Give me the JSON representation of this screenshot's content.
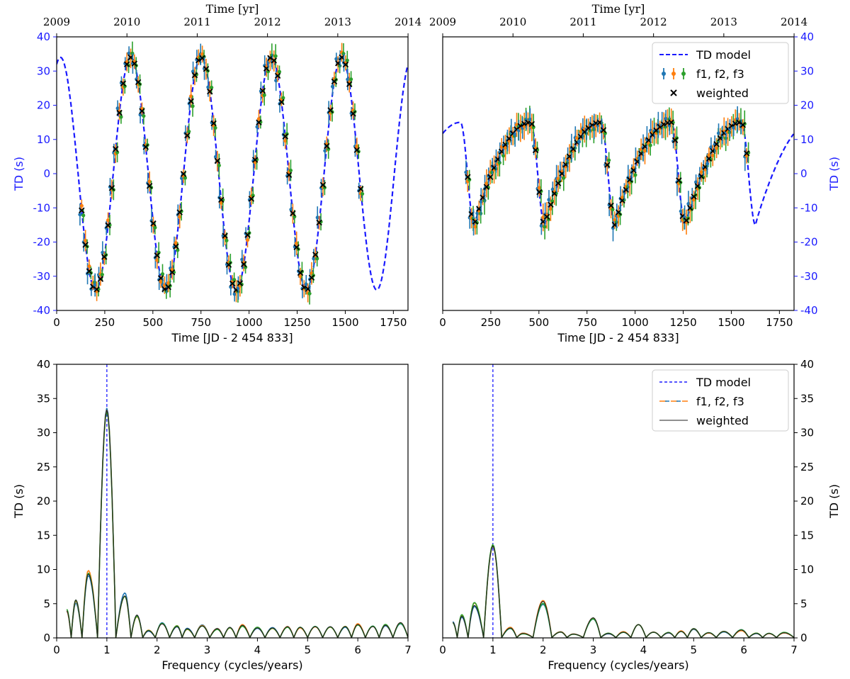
{
  "colors": {
    "model": "#1a1aff",
    "f1": "#1f77b4",
    "f2": "#ff7f0e",
    "f3": "#2ca02c",
    "weighted": "#000000",
    "axis": "#000000"
  },
  "chart_data": [
    {
      "type": "line",
      "panel": "top-left",
      "xlabel": "Time [JD - 2 454 833]",
      "ylabel": "TD (s)",
      "top_xlabel": "Time [yr]",
      "xlim": [
        0,
        1826
      ],
      "ylim": [
        -40,
        40
      ],
      "xticks": [
        "0",
        "250",
        "500",
        "750",
        "1000",
        "1250",
        "1500",
        "1750"
      ],
      "yticks": [
        "-40",
        "-30",
        "-20",
        "-10",
        "0",
        "10",
        "20",
        "30",
        "40"
      ],
      "top_ticks": [
        "2009",
        "2010",
        "2011",
        "2012",
        "2013",
        "2014"
      ],
      "y_axis_side": "left",
      "model": {
        "name": "TD model",
        "amplitude": 34,
        "period": 365.25,
        "phase_peak": 20,
        "shape": "sine"
      },
      "observations": {
        "x_start": 130,
        "x_end": 1580,
        "count": 75,
        "error": 2.5
      },
      "legend": []
    },
    {
      "type": "line",
      "panel": "top-right",
      "xlabel": "Time [JD - 2 454 833]",
      "ylabel": "TD (s)",
      "top_xlabel": "Time [yr]",
      "xlim": [
        0,
        1826
      ],
      "ylim": [
        -40,
        40
      ],
      "xticks": [
        "0",
        "250",
        "500",
        "750",
        "1000",
        "1250",
        "1500",
        "1750"
      ],
      "yticks": [
        "-40",
        "-30",
        "-20",
        "-10",
        "0",
        "10",
        "20",
        "30",
        "40"
      ],
      "top_ticks": [
        "2009",
        "2010",
        "2011",
        "2012",
        "2013",
        "2014"
      ],
      "y_axis_side": "right",
      "model": {
        "name": "TD model",
        "amplitude": 15,
        "period": 365.25,
        "phase_trough": 165,
        "shape": "sawtooth"
      },
      "observations": {
        "x_start": 130,
        "x_end": 1580,
        "count": 75,
        "error": 3
      },
      "legend": [
        "TD model",
        "f1, f2, f3",
        "weighted"
      ],
      "legend_position": "top-right"
    },
    {
      "type": "line",
      "panel": "bottom-left",
      "xlabel": "Frequency (cycles/years)",
      "ylabel": "TD (s)",
      "xlim": [
        0,
        7
      ],
      "ylim": [
        0,
        40
      ],
      "xticks": [
        "0",
        "1",
        "2",
        "3",
        "4",
        "5",
        "6",
        "7"
      ],
      "yticks": [
        "0",
        "5",
        "10",
        "15",
        "20",
        "25",
        "30",
        "35",
        "40"
      ],
      "y_axis_side": "left",
      "vline": 1,
      "peaks": [
        {
          "x": 0.2,
          "y": 3.9
        },
        {
          "x": 0.38,
          "y": 5.5
        },
        {
          "x": 0.63,
          "y": 9.3
        },
        {
          "x": 1.0,
          "y": 33.3
        },
        {
          "x": 1.36,
          "y": 6.1
        },
        {
          "x": 1.6,
          "y": 3.3
        },
        {
          "x": 1.83,
          "y": 1.0
        },
        {
          "x": 2.1,
          "y": 2.0
        },
        {
          "x": 2.4,
          "y": 1.6
        },
        {
          "x": 2.6,
          "y": 1.3
        },
        {
          "x": 2.9,
          "y": 1.7
        },
        {
          "x": 3.2,
          "y": 1.3
        },
        {
          "x": 3.45,
          "y": 1.5
        },
        {
          "x": 3.7,
          "y": 1.8
        },
        {
          "x": 4.0,
          "y": 1.4
        },
        {
          "x": 4.3,
          "y": 1.4
        },
        {
          "x": 4.6,
          "y": 1.6
        },
        {
          "x": 4.85,
          "y": 1.5
        },
        {
          "x": 5.15,
          "y": 1.6
        },
        {
          "x": 5.45,
          "y": 1.6
        },
        {
          "x": 5.75,
          "y": 1.6
        },
        {
          "x": 6.0,
          "y": 1.9
        },
        {
          "x": 6.3,
          "y": 1.6
        },
        {
          "x": 6.55,
          "y": 1.8
        },
        {
          "x": 6.85,
          "y": 2.2
        }
      ],
      "legend": []
    },
    {
      "type": "line",
      "panel": "bottom-right",
      "xlabel": "Frequency (cycles/years)",
      "ylabel": "TD (s)",
      "xlim": [
        0,
        7
      ],
      "ylim": [
        0,
        40
      ],
      "xticks": [
        "0",
        "1",
        "2",
        "3",
        "4",
        "5",
        "6",
        "7"
      ],
      "yticks": [
        "0",
        "5",
        "10",
        "15",
        "20",
        "25",
        "30",
        "35",
        "40"
      ],
      "y_axis_side": "right",
      "vline": 1,
      "peaks": [
        {
          "x": 0.2,
          "y": 2.2
        },
        {
          "x": 0.38,
          "y": 3.1
        },
        {
          "x": 0.63,
          "y": 4.7
        },
        {
          "x": 1.0,
          "y": 13.4
        },
        {
          "x": 1.35,
          "y": 1.4
        },
        {
          "x": 1.6,
          "y": 0.6
        },
        {
          "x": 2.0,
          "y": 5.3
        },
        {
          "x": 2.35,
          "y": 0.8
        },
        {
          "x": 2.6,
          "y": 0.5
        },
        {
          "x": 3.0,
          "y": 2.9
        },
        {
          "x": 3.3,
          "y": 0.6
        },
        {
          "x": 3.6,
          "y": 0.8
        },
        {
          "x": 3.9,
          "y": 1.9
        },
        {
          "x": 4.2,
          "y": 0.8
        },
        {
          "x": 4.5,
          "y": 0.7
        },
        {
          "x": 4.75,
          "y": 0.9
        },
        {
          "x": 5.0,
          "y": 1.3
        },
        {
          "x": 5.3,
          "y": 0.7
        },
        {
          "x": 5.6,
          "y": 0.9
        },
        {
          "x": 5.95,
          "y": 1.1
        },
        {
          "x": 6.25,
          "y": 0.6
        },
        {
          "x": 6.5,
          "y": 0.6
        },
        {
          "x": 6.8,
          "y": 0.7
        }
      ],
      "legend": [
        "TD model",
        "f1, f2, f3",
        "weighted"
      ],
      "legend_position": "top-right"
    }
  ]
}
